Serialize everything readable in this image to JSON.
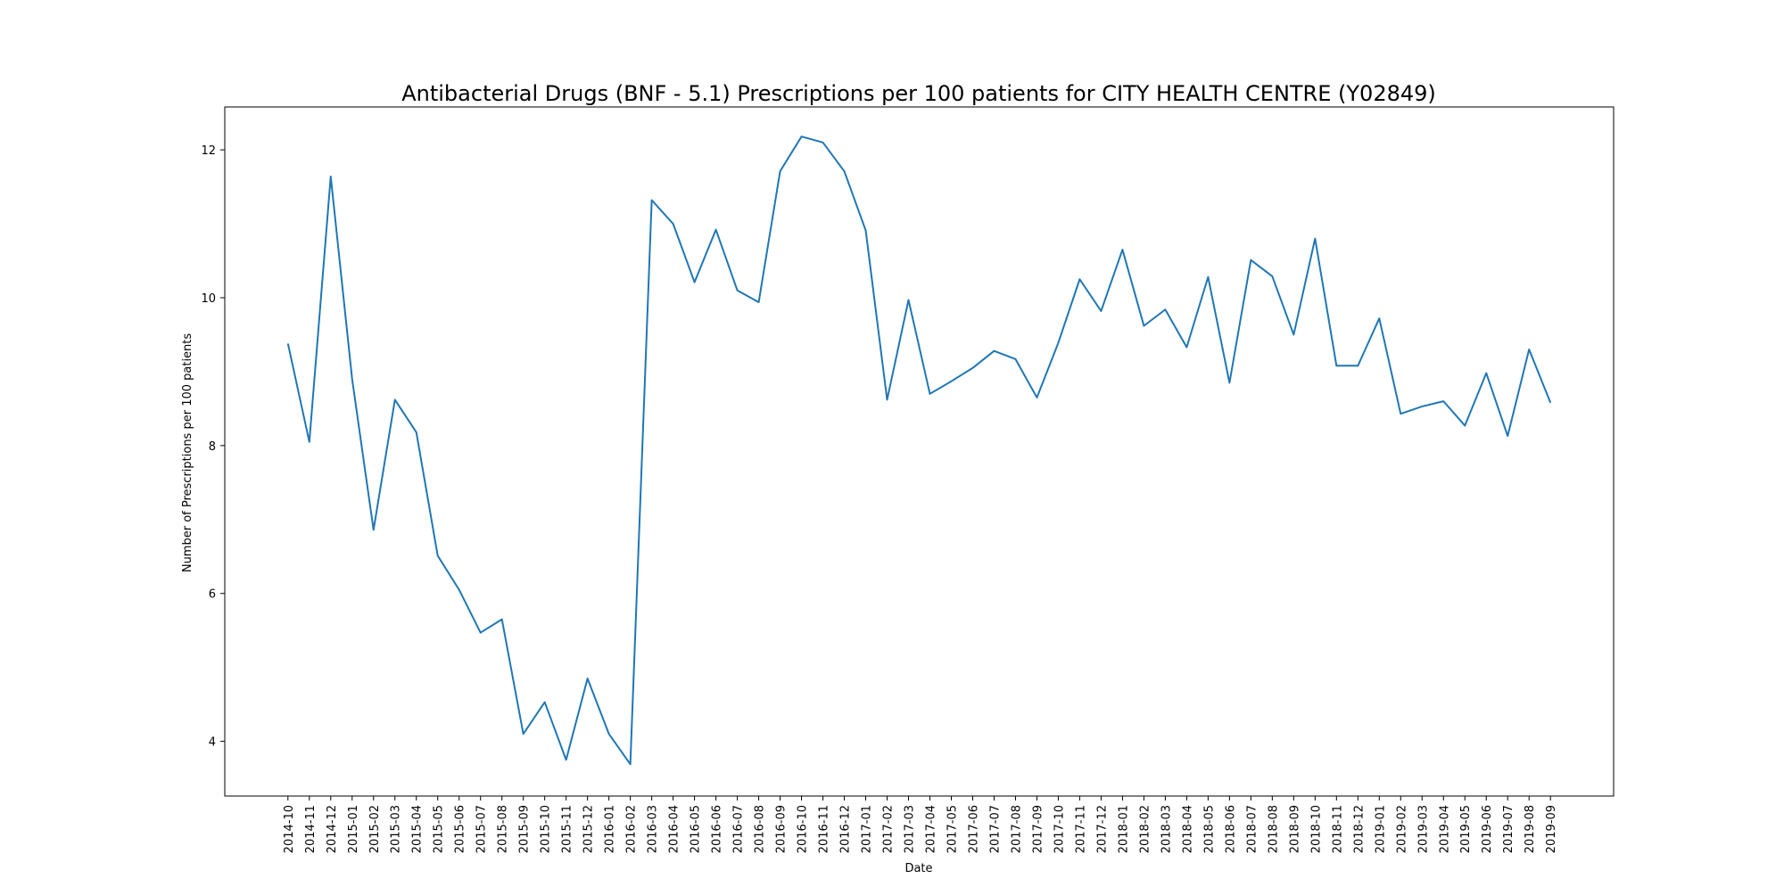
{
  "chart_data": {
    "type": "line",
    "title": "Antibacterial Drugs (BNF - 5.1) Prescriptions per 100 patients for CITY HEALTH CENTRE (Y02849)",
    "xlabel": "Date",
    "ylabel": "Number of Prescriptions per 100 patients",
    "ylim": [
      3.26,
      12.58
    ],
    "yticks": [
      4,
      6,
      8,
      10,
      12
    ],
    "grid": false,
    "line_color": "#1f77b4",
    "categories": [
      "2014-10",
      "2014-11",
      "2014-12",
      "2015-01",
      "2015-02",
      "2015-03",
      "2015-04",
      "2015-05",
      "2015-06",
      "2015-07",
      "2015-08",
      "2015-09",
      "2015-10",
      "2015-11",
      "2015-12",
      "2016-01",
      "2016-02",
      "2016-03",
      "2016-04",
      "2016-05",
      "2016-06",
      "2016-07",
      "2016-08",
      "2016-09",
      "2016-10",
      "2016-11",
      "2016-12",
      "2017-01",
      "2017-02",
      "2017-03",
      "2017-04",
      "2017-05",
      "2017-06",
      "2017-07",
      "2017-08",
      "2017-09",
      "2017-10",
      "2017-11",
      "2017-12",
      "2018-01",
      "2018-02",
      "2018-03",
      "2018-04",
      "2018-05",
      "2018-06",
      "2018-07",
      "2018-08",
      "2018-09",
      "2018-10",
      "2018-11",
      "2018-12",
      "2019-01",
      "2019-02",
      "2019-03",
      "2019-04",
      "2019-05",
      "2019-06",
      "2019-07",
      "2019-08",
      "2019-09"
    ],
    "series": [
      {
        "values": [
          9.38,
          8.05,
          11.64,
          8.9,
          6.86,
          8.62,
          8.18,
          6.51,
          6.05,
          5.47,
          5.65,
          4.1,
          4.53,
          3.75,
          4.85,
          4.1,
          3.69,
          11.32,
          11.0,
          10.21,
          10.92,
          10.1,
          9.94,
          11.71,
          12.18,
          12.1,
          11.71,
          10.91,
          8.62,
          9.97,
          8.7,
          8.87,
          9.05,
          9.28,
          9.17,
          8.65,
          9.39,
          10.25,
          9.82,
          10.65,
          9.62,
          9.84,
          9.33,
          10.28,
          8.85,
          10.51,
          10.29,
          9.5,
          10.8,
          9.08,
          9.08,
          9.72,
          8.43,
          8.53,
          8.6,
          8.27,
          8.98,
          8.13,
          9.3,
          8.58
        ]
      }
    ]
  }
}
